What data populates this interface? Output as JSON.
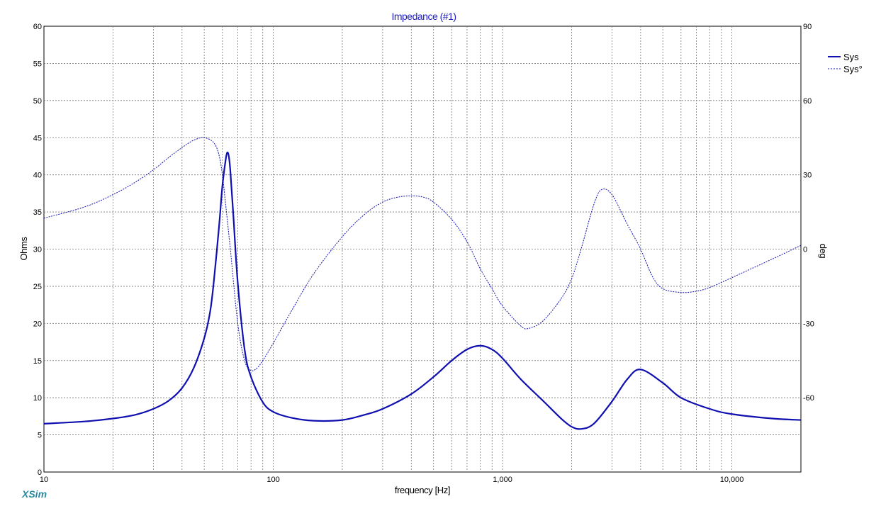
{
  "chart_data": {
    "type": "line",
    "title": "Impedance (#1)",
    "xlabel": "frequency [Hz]",
    "ylabel": "Ohms",
    "y2label": "deg",
    "xscale": "log",
    "xlim": [
      10,
      20000
    ],
    "ylim": [
      0,
      60
    ],
    "y2lim": [
      -90,
      90
    ],
    "grid": true,
    "legend_position": "top-right",
    "brand": "XSim",
    "x_ticks": [
      "10",
      "100",
      "1,000",
      "10,000"
    ],
    "y_ticks": [
      "0",
      "5",
      "10",
      "15",
      "20",
      "25",
      "30",
      "35",
      "40",
      "45",
      "50",
      "55",
      "60"
    ],
    "y2_ticks": [
      "-60",
      "-30",
      "0",
      "30",
      "60",
      "90"
    ],
    "series": [
      {
        "name": "Sys",
        "axis": "left",
        "style": "solid",
        "color": "#1010b0",
        "x": [
          10,
          15,
          20,
          25,
          30,
          35,
          40,
          45,
          50,
          53,
          55,
          58,
          60,
          62,
          63,
          64,
          65,
          67,
          70,
          75,
          80,
          90,
          100,
          120,
          150,
          200,
          250,
          300,
          400,
          500,
          600,
          700,
          800,
          900,
          1000,
          1200,
          1500,
          1800,
          2000,
          2200,
          2500,
          3000,
          3500,
          4000,
          5000,
          6000,
          8000,
          10000,
          15000,
          20000
        ],
        "values": [
          6.5,
          6.8,
          7.2,
          7.7,
          8.5,
          9.6,
          11.3,
          14.0,
          18.0,
          21.5,
          25.5,
          33.0,
          38.5,
          42.0,
          43.0,
          42.5,
          40.5,
          34.5,
          25.5,
          16.5,
          12.8,
          9.4,
          8.1,
          7.3,
          6.9,
          7.0,
          7.7,
          8.5,
          10.5,
          12.8,
          15.0,
          16.5,
          17.0,
          16.5,
          15.3,
          12.5,
          9.6,
          7.2,
          6.1,
          5.8,
          6.5,
          9.5,
          12.5,
          13.8,
          12.0,
          10.0,
          8.5,
          7.8,
          7.2,
          7.0
        ]
      },
      {
        "name": "Sys°",
        "axis": "right",
        "style": "dashed",
        "color": "#1010b0",
        "x": [
          10,
          15,
          20,
          25,
          30,
          35,
          40,
          45,
          50,
          55,
          58,
          60,
          62,
          65,
          70,
          75,
          80,
          85,
          90,
          100,
          120,
          150,
          200,
          250,
          300,
          350,
          400,
          450,
          500,
          600,
          700,
          800,
          900,
          1000,
          1200,
          1300,
          1500,
          1800,
          2000,
          2200,
          2500,
          2700,
          3000,
          3500,
          4000,
          4500,
          5000,
          6000,
          7000,
          8000,
          10000,
          15000,
          20000
        ],
        "values": [
          12.5,
          17,
          22,
          27,
          32,
          37,
          41,
          44,
          45,
          43,
          38,
          30,
          18,
          0,
          -30,
          -45,
          -49,
          -48,
          -45,
          -38,
          -25,
          -10,
          5,
          14,
          19,
          21,
          21.5,
          21,
          19,
          12,
          3,
          -8,
          -16,
          -23,
          -31,
          -32,
          -29,
          -20,
          -12,
          0,
          18,
          24,
          22,
          10,
          0,
          -11,
          -16,
          -17.5,
          -17,
          -15.5,
          -11.5,
          -4,
          1.5
        ]
      }
    ]
  }
}
